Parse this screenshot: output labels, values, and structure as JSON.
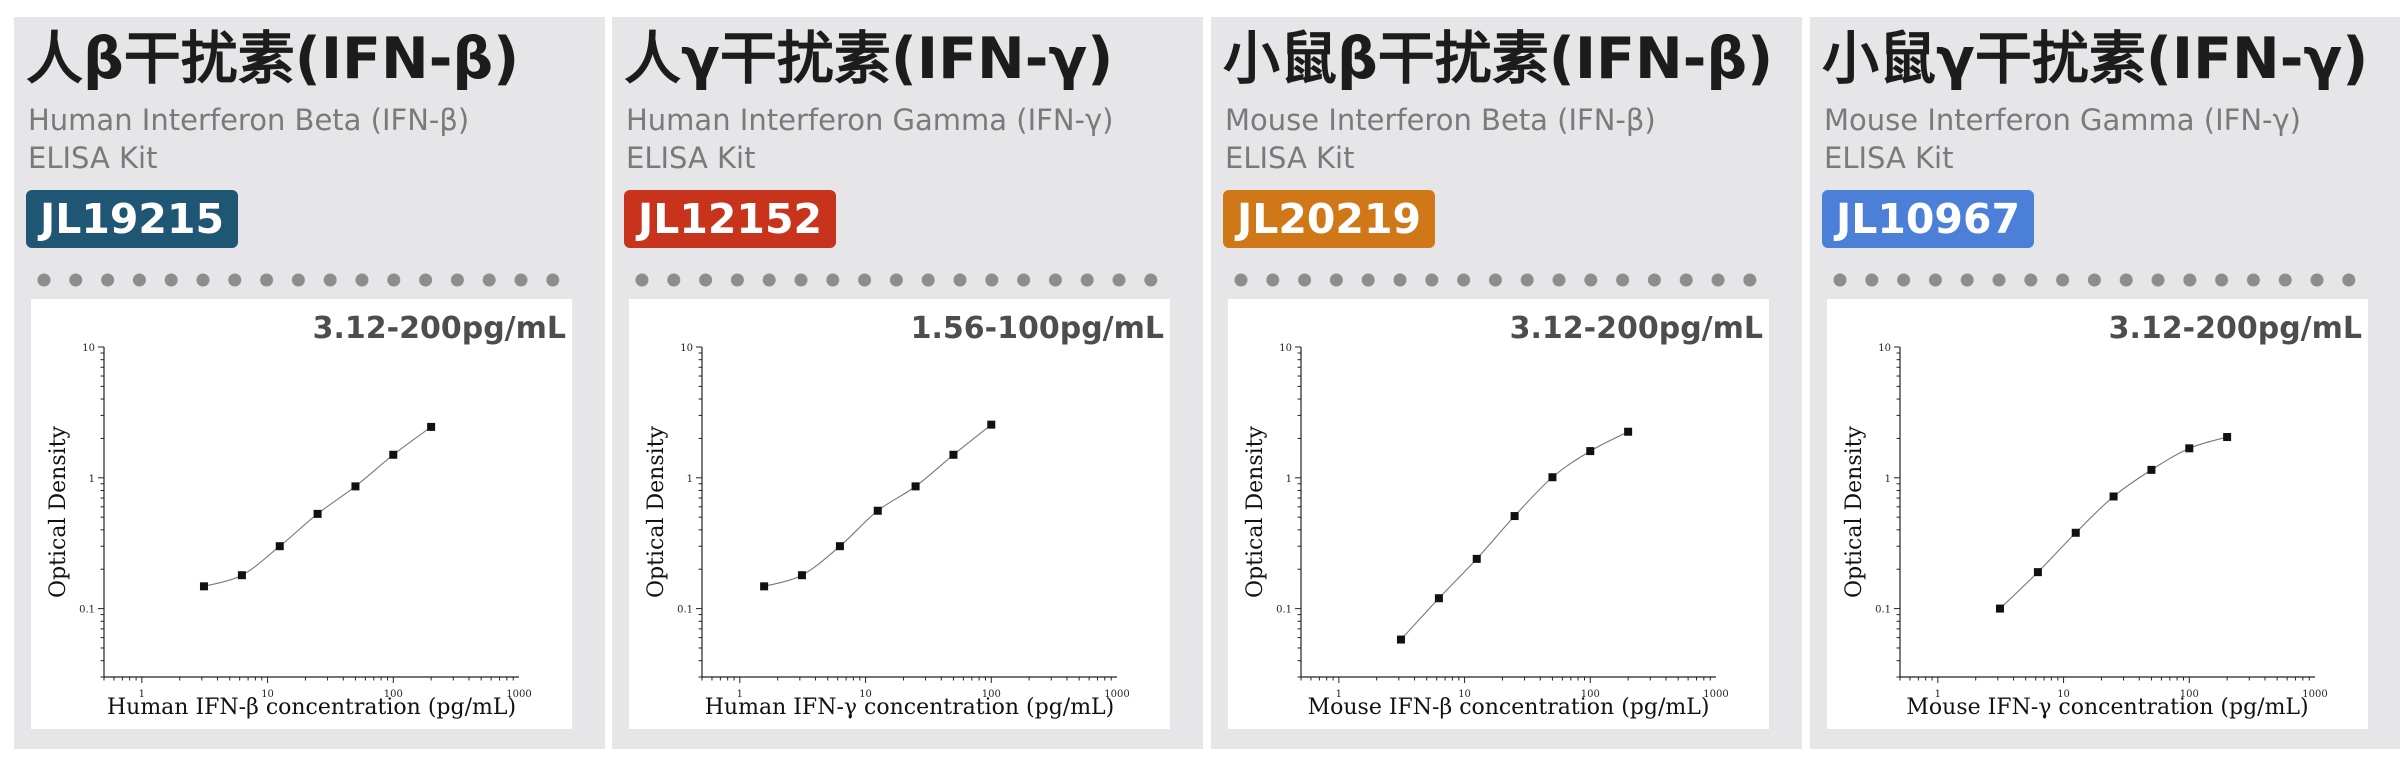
{
  "charts": [
    {
      "title": "人β干扰素(IFN-β)",
      "subtitle_line1": "Human Interferon Beta (IFN-β)",
      "subtitle_line2": "ELISA Kit",
      "catalog": "JL19215",
      "badge_color": "#1f5674",
      "range": "3.12-200pg/mL",
      "chart_data": {
        "type": "scatter",
        "x": [
          3.12,
          6.25,
          12.5,
          25,
          50,
          100,
          200
        ],
        "values": [
          0.148,
          0.18,
          0.3,
          0.53,
          0.86,
          1.5,
          2.45
        ],
        "xlabel": "Human IFN-β concentration (pg/mL)",
        "ylabel": "Optical Density",
        "x_scale": "log",
        "y_scale": "log",
        "xlim": [
          0.5,
          1000
        ],
        "ylim": [
          0.03,
          10
        ],
        "x_ticks": [
          "1",
          "10",
          "100",
          "1000"
        ],
        "y_ticks": [
          "0.1",
          "1",
          "10"
        ]
      }
    },
    {
      "title": "人γ干扰素(IFN-γ)",
      "subtitle_line1": "Human Interferon Gamma (IFN-γ)",
      "subtitle_line2": "ELISA Kit",
      "catalog": "JL12152",
      "badge_color": "#c7341b",
      "range": "1.56-100pg/mL",
      "chart_data": {
        "type": "scatter",
        "x": [
          1.56,
          3.12,
          6.25,
          12.5,
          25,
          50,
          100
        ],
        "values": [
          0.148,
          0.18,
          0.3,
          0.56,
          0.86,
          1.5,
          2.55
        ],
        "xlabel": "Human IFN-γ concentration (pg/mL)",
        "ylabel": "Optical Density",
        "x_scale": "log",
        "y_scale": "log",
        "xlim": [
          0.5,
          1000
        ],
        "ylim": [
          0.03,
          10
        ],
        "x_ticks": [
          "1",
          "10",
          "100",
          "1000"
        ],
        "y_ticks": [
          "0.1",
          "1",
          "10"
        ]
      }
    },
    {
      "title": "小鼠β干扰素(IFN-β)",
      "subtitle_line1": "Mouse Interferon Beta (IFN-β)",
      "subtitle_line2": "ELISA Kit",
      "catalog": "JL20219",
      "badge_color": "#d07817",
      "range": "3.12-200pg/mL",
      "chart_data": {
        "type": "scatter",
        "x": [
          3.12,
          6.25,
          12.5,
          25,
          50,
          100,
          200
        ],
        "values": [
          0.058,
          0.12,
          0.24,
          0.51,
          1.01,
          1.6,
          2.25
        ],
        "xlabel": "Mouse IFN-β concentration (pg/mL)",
        "ylabel": "Optical Density",
        "x_scale": "log",
        "y_scale": "log",
        "xlim": [
          0.5,
          1000
        ],
        "ylim": [
          0.03,
          10
        ],
        "x_ticks": [
          "1",
          "10",
          "100",
          "1000"
        ],
        "y_ticks": [
          "0.1",
          "1",
          "10"
        ]
      }
    },
    {
      "title": "小鼠γ干扰素(IFN-γ)",
      "subtitle_line1": "Mouse Interferon Gamma (IFN-γ)",
      "subtitle_line2": "ELISA Kit",
      "catalog": "JL10967",
      "badge_color": "#4b7fd8",
      "range": "3.12-200pg/mL",
      "chart_data": {
        "type": "scatter",
        "x": [
          3.12,
          6.25,
          12.5,
          25,
          50,
          100,
          200
        ],
        "values": [
          0.1,
          0.19,
          0.38,
          0.72,
          1.15,
          1.68,
          2.05
        ],
        "xlabel": "Mouse IFN-γ concentration (pg/mL)",
        "ylabel": "Optical Density",
        "x_scale": "log",
        "y_scale": "log",
        "xlim": [
          0.5,
          1000
        ],
        "ylim": [
          0.03,
          10
        ],
        "x_ticks": [
          "1",
          "10",
          "100",
          "1000"
        ],
        "y_ticks": [
          "0.1",
          "1",
          "10"
        ]
      }
    }
  ],
  "dot_color": "#8d8d8d"
}
